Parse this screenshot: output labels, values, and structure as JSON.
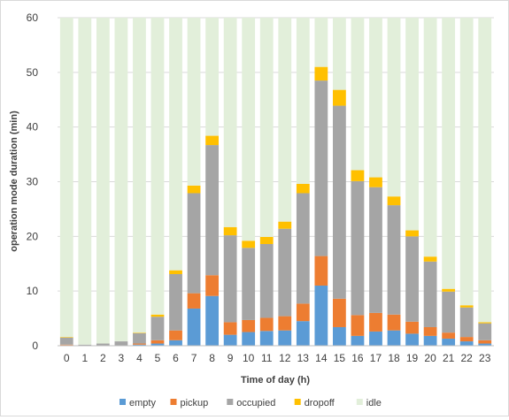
{
  "chart_data": {
    "type": "bar",
    "stacked": true,
    "title": "",
    "xlabel": "Time of day  (h)",
    "ylabel": "operation mode duration (min)",
    "ylim": [
      0,
      60
    ],
    "yticks": [
      0,
      10,
      20,
      30,
      40,
      50,
      60
    ],
    "grid": true,
    "legend_position": "bottom",
    "categories": [
      "0",
      "1",
      "2",
      "3",
      "4",
      "5",
      "6",
      "7",
      "8",
      "9",
      "10",
      "11",
      "12",
      "13",
      "14",
      "15",
      "16",
      "17",
      "18",
      "19",
      "20",
      "21",
      "22",
      "23"
    ],
    "series": [
      {
        "name": "empty",
        "color": "#5b9bd5",
        "values": [
          0.1,
          0,
          0,
          0,
          0.2,
          0.4,
          1.0,
          6.8,
          9.1,
          2.0,
          2.5,
          2.7,
          2.8,
          4.5,
          11.0,
          3.4,
          1.8,
          2.6,
          2.8,
          2.2,
          1.8,
          1.3,
          0.8,
          0.4
        ]
      },
      {
        "name": "pickup",
        "color": "#ed7d31",
        "values": [
          0.1,
          0,
          0,
          0,
          0.2,
          0.6,
          1.8,
          2.8,
          3.8,
          2.3,
          2.2,
          2.4,
          2.6,
          3.2,
          5.4,
          5.2,
          3.8,
          3.4,
          2.9,
          2.2,
          1.6,
          1.1,
          0.8,
          0.6
        ]
      },
      {
        "name": "occupied",
        "color": "#a5a5a5",
        "values": [
          1.3,
          0.2,
          0.4,
          0.8,
          1.9,
          4.3,
          10.3,
          18.3,
          23.8,
          15.9,
          13.2,
          13.5,
          16.0,
          20.2,
          32.1,
          35.3,
          24.5,
          23.0,
          20.0,
          15.6,
          12.0,
          7.5,
          5.4,
          3.1
        ]
      },
      {
        "name": "dropoff",
        "color": "#ffc000",
        "values": [
          0.1,
          0,
          0,
          0,
          0.1,
          0.4,
          0.7,
          1.4,
          1.7,
          1.5,
          1.3,
          1.3,
          1.3,
          1.7,
          2.5,
          2.9,
          2.0,
          1.8,
          1.6,
          1.1,
          0.9,
          0.5,
          0.4,
          0.2
        ]
      },
      {
        "name": "idle",
        "color": "#e2efda",
        "values": [
          58.4,
          59.8,
          59.6,
          59.2,
          57.6,
          54.3,
          46.2,
          30.7,
          21.6,
          38.3,
          40.8,
          40.1,
          37.3,
          30.4,
          9.0,
          13.2,
          27.9,
          29.2,
          32.7,
          38.9,
          43.7,
          49.6,
          52.6,
          55.7
        ]
      }
    ]
  }
}
